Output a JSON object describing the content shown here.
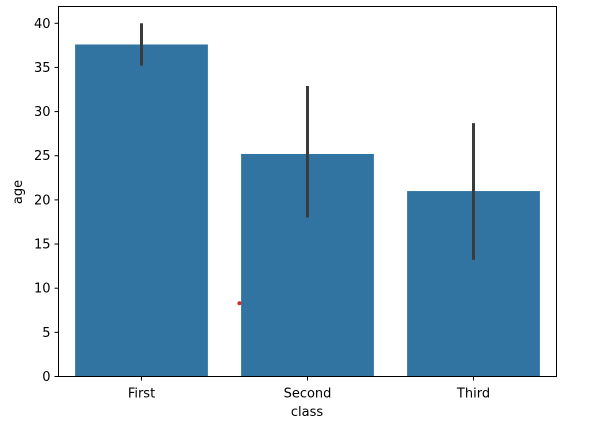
{
  "chart_data": {
    "type": "bar",
    "title": "",
    "xlabel": "class",
    "ylabel": "age",
    "categories": [
      "First",
      "Second",
      "Third"
    ],
    "values": [
      37.6,
      25.2,
      21.0
    ],
    "error_bars": [
      {
        "low": 35.2,
        "high": 40.0
      },
      {
        "low": 18.0,
        "high": 32.9
      },
      {
        "low": 13.2,
        "high": 28.7
      }
    ],
    "ylim": [
      0,
      41.9
    ],
    "yticks": [
      0,
      5,
      10,
      15,
      20,
      25,
      30,
      35,
      40
    ],
    "grid": false,
    "colors": {
      "bar": "#3274a1",
      "error_bar": "#3b3b3b",
      "marker": "#d62728"
    },
    "annotations": [
      {
        "type": "point",
        "x": 0.59,
        "y": 8.3
      }
    ]
  }
}
